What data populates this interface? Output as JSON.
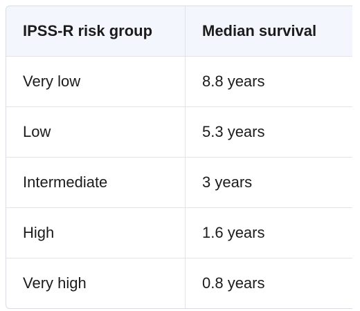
{
  "table": {
    "header": [
      "IPSS-R risk group",
      "Median survival"
    ],
    "rows": [
      [
        "Very low",
        "8.8 years"
      ],
      [
        "Low",
        "5.3 years"
      ],
      [
        "Intermediate",
        "3 years"
      ],
      [
        "High",
        "1.6 years"
      ],
      [
        "Very high",
        "0.8 years"
      ]
    ]
  }
}
